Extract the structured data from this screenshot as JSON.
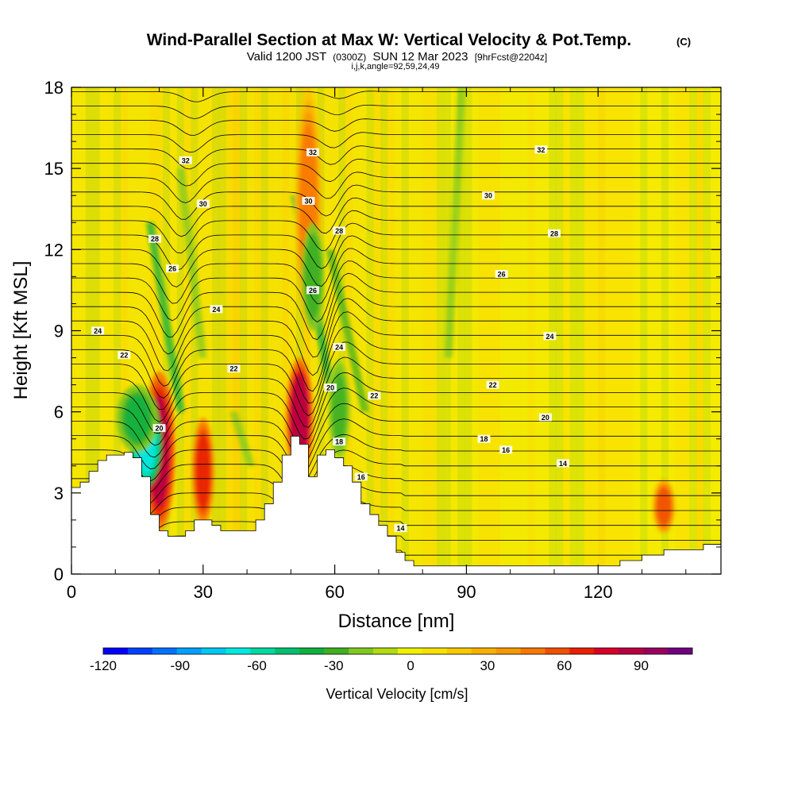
{
  "header": {
    "title": "Wind-Parallel Section at Max W: Vertical Velocity & Pot.Temp.",
    "title_mark": "(C)",
    "valid_prefix": "Valid 1200 JST",
    "valid_utc": "(0300Z)",
    "valid_date": "SUN 12 Mar 2023",
    "forecast_tag": "[9hrFcst@2204z]",
    "indices": "i,j,k,angle=92,59,24,49"
  },
  "chart_data": {
    "type": "heatmap",
    "xlabel": "Distance [nm]",
    "ylabel": "Height [Kft MSL]",
    "xlim": [
      0,
      148
    ],
    "ylim": [
      0,
      18
    ],
    "x_ticks": [
      "0",
      "30",
      "60",
      "90",
      "120"
    ],
    "y_ticks": [
      "0",
      "3",
      "6",
      "9",
      "12",
      "15",
      "18"
    ],
    "grid": false,
    "colorbar": {
      "label": "Vertical Velocity [cm/s]",
      "range": [
        -120,
        110
      ],
      "tick_labels": [
        "-120",
        "-90",
        "-60",
        "-30",
        "0",
        "30",
        "60",
        "90"
      ],
      "colors": [
        "#0000ff",
        "#0040ff",
        "#0070ff",
        "#00a0ff",
        "#00c8f0",
        "#00e8e0",
        "#00d8a0",
        "#00c070",
        "#10b040",
        "#40b020",
        "#80c820",
        "#b0dc10",
        "#f0f000",
        "#f8e000",
        "#f8c800",
        "#f8b000",
        "#f89800",
        "#f87800",
        "#f05000",
        "#e82000",
        "#d80028",
        "#b80040",
        "#980060",
        "#700080"
      ],
      "position": "bottom"
    },
    "terrain_heights_kft": [
      [
        0,
        3.2
      ],
      [
        2,
        3.4
      ],
      [
        4,
        3.8
      ],
      [
        6,
        4.2
      ],
      [
        8,
        4.4
      ],
      [
        12,
        4.5
      ],
      [
        14,
        4.3
      ],
      [
        16,
        3.6
      ],
      [
        18,
        2.2
      ],
      [
        20,
        1.6
      ],
      [
        22,
        1.4
      ],
      [
        24,
        1.4
      ],
      [
        26,
        1.6
      ],
      [
        28,
        2.0
      ],
      [
        30,
        2.0
      ],
      [
        32,
        1.8
      ],
      [
        34,
        1.6
      ],
      [
        40,
        1.6
      ],
      [
        42,
        2.0
      ],
      [
        44,
        2.6
      ],
      [
        46,
        3.4
      ],
      [
        48,
        4.4
      ],
      [
        50,
        5.1
      ],
      [
        52,
        4.8
      ],
      [
        54,
        3.6
      ],
      [
        56,
        4.4
      ],
      [
        58,
        4.6
      ],
      [
        60,
        4.3
      ],
      [
        62,
        4.0
      ],
      [
        64,
        3.4
      ],
      [
        66,
        2.6
      ],
      [
        68,
        2.2
      ],
      [
        70,
        1.8
      ],
      [
        72,
        1.4
      ],
      [
        74,
        0.8
      ],
      [
        76,
        0.5
      ],
      [
        78,
        0.3
      ],
      [
        90,
        0.3
      ],
      [
        100,
        0.3
      ],
      [
        110,
        0.3
      ],
      [
        120,
        0.3
      ],
      [
        125,
        0.5
      ],
      [
        130,
        0.7
      ],
      [
        135,
        0.9
      ],
      [
        140,
        0.9
      ],
      [
        144,
        1.1
      ],
      [
        148,
        1.3
      ]
    ],
    "isotherm_labels": [
      {
        "text": "32",
        "x": 26,
        "y": 15.3
      },
      {
        "text": "32",
        "x": 55,
        "y": 15.6
      },
      {
        "text": "32",
        "x": 107,
        "y": 15.7
      },
      {
        "text": "30",
        "x": 30,
        "y": 13.7
      },
      {
        "text": "30",
        "x": 54,
        "y": 13.8
      },
      {
        "text": "30",
        "x": 95,
        "y": 14.0
      },
      {
        "text": "28",
        "x": 19,
        "y": 12.4
      },
      {
        "text": "28",
        "x": 61,
        "y": 12.7
      },
      {
        "text": "28",
        "x": 110,
        "y": 12.6
      },
      {
        "text": "26",
        "x": 23,
        "y": 11.3
      },
      {
        "text": "26",
        "x": 55,
        "y": 10.5
      },
      {
        "text": "26",
        "x": 98,
        "y": 11.1
      },
      {
        "text": "24",
        "x": 6,
        "y": 9.0
      },
      {
        "text": "24",
        "x": 33,
        "y": 9.8
      },
      {
        "text": "24",
        "x": 61,
        "y": 8.4
      },
      {
        "text": "24",
        "x": 109,
        "y": 8.8
      },
      {
        "text": "22",
        "x": 12,
        "y": 8.1
      },
      {
        "text": "22",
        "x": 37,
        "y": 7.6
      },
      {
        "text": "22",
        "x": 69,
        "y": 6.6
      },
      {
        "text": "22",
        "x": 96,
        "y": 7.0
      },
      {
        "text": "20",
        "x": 20,
        "y": 5.4
      },
      {
        "text": "20",
        "x": 59,
        "y": 6.9
      },
      {
        "text": "20",
        "x": 108,
        "y": 5.8
      },
      {
        "text": "18",
        "x": 61,
        "y": 4.9
      },
      {
        "text": "18",
        "x": 94,
        "y": 5.0
      },
      {
        "text": "16",
        "x": 66,
        "y": 3.6
      },
      {
        "text": "16",
        "x": 99,
        "y": 4.6
      },
      {
        "text": "14",
        "x": 75,
        "y": 1.7
      },
      {
        "text": "14",
        "x": 112,
        "y": 4.1
      }
    ],
    "features": [
      {
        "kind": "updraft",
        "x": 20,
        "y0": 1.6,
        "y1": 7.5,
        "w": 3.0,
        "value": 85
      },
      {
        "kind": "updraft",
        "x": 30,
        "y0": 1.8,
        "y1": 5.8,
        "w": 2.0,
        "value": 70
      },
      {
        "kind": "updraft",
        "x": 52,
        "y0": 3.5,
        "y1": 8.0,
        "w": 2.5,
        "value": 90
      },
      {
        "kind": "updraft",
        "x": 54,
        "y0": 9.0,
        "y1": 18.0,
        "w": 2.5,
        "value": 45
      },
      {
        "kind": "updraft",
        "x": 135,
        "y0": 1.5,
        "y1": 3.5,
        "w": 2.0,
        "value": 55
      },
      {
        "kind": "downdraft",
        "x": 17,
        "y0": 3.2,
        "y1": 6.5,
        "w": 3.0,
        "value": -70
      },
      {
        "kind": "downdraft",
        "x": 15,
        "y0": 4.5,
        "y1": 7.0,
        "w": 4.0,
        "value": -35
      },
      {
        "kind": "downdraft",
        "x": 55,
        "y0": 9.0,
        "y1": 13.0,
        "w": 2.0,
        "value": -30
      },
      {
        "kind": "downdraft",
        "x": 61,
        "y0": 4.2,
        "y1": 8.0,
        "w": 2.0,
        "value": -25
      }
    ]
  }
}
